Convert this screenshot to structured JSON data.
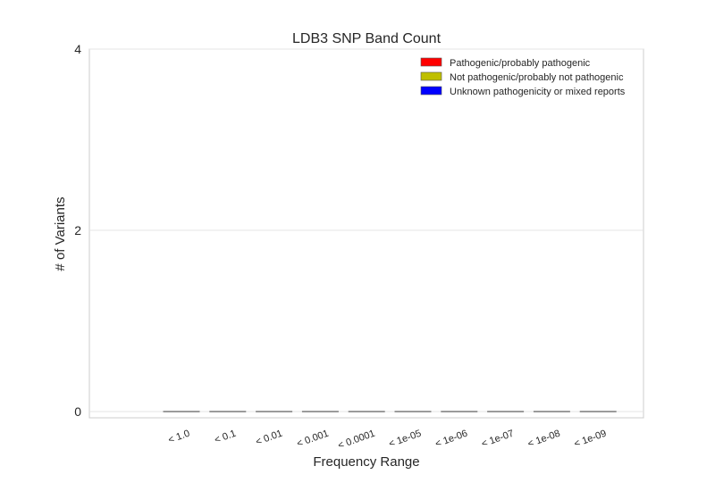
{
  "chart_data": {
    "type": "bar",
    "title": "LDB3 SNP Band Count",
    "xlabel": "Frequency Range",
    "ylabel": "# of Variants",
    "ylim": [
      0,
      4
    ],
    "yticks": [
      0,
      2,
      4
    ],
    "grid": true,
    "legend_position": "top-right",
    "categories": [
      "< 1.0",
      "< 0.1",
      "< 0.01",
      "< 0.001",
      "< 0.0001",
      "< 1e-05",
      "< 1e-06",
      "< 1e-07",
      "< 1e-08",
      "< 1e-09"
    ],
    "series": [
      {
        "name": "Pathogenic/probably pathogenic",
        "color": "#ff0000",
        "values": [
          0,
          0,
          0,
          0,
          0,
          0,
          0,
          0,
          0,
          0
        ]
      },
      {
        "name": "Not pathogenic/probably not pathogenic",
        "color": "#bfbf00",
        "values": [
          0,
          0,
          0,
          0,
          0,
          0,
          0,
          0,
          0,
          0
        ]
      },
      {
        "name": "Unknown pathogenicity or mixed reports",
        "color": "#0000ff",
        "values": [
          0,
          0,
          0,
          0,
          0,
          0,
          0,
          0,
          0,
          0
        ]
      }
    ]
  }
}
